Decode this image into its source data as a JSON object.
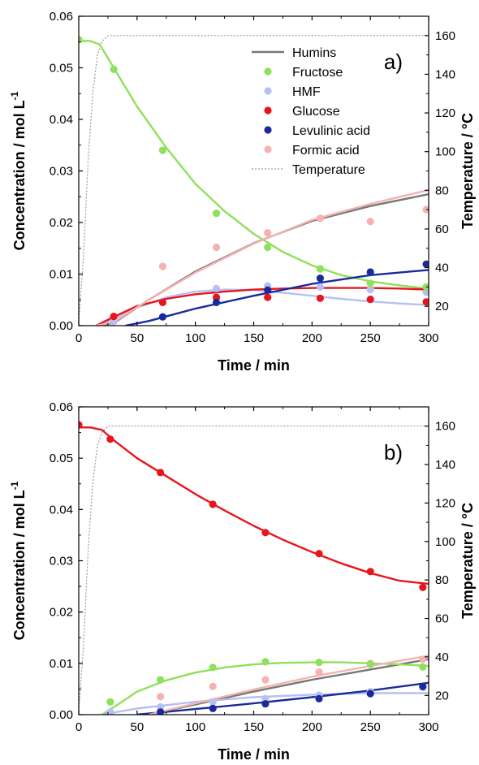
{
  "colors": {
    "humins": "#777777",
    "fructose": "#8fe05a",
    "hmf": "#b6c0f2",
    "glucose": "#e8151d",
    "levulinic": "#1a2a9b",
    "formic": "#f4b3b0",
    "temperature": "#999999"
  },
  "chart_data": [
    {
      "type": "scatter",
      "panel_label": "a)",
      "xlabel": "Time / min",
      "ylabel": "Concentration / mol L",
      "ylabel_sup": "-1",
      "y2label": "Temperature / °C",
      "xlim": [
        0,
        300
      ],
      "ylim": [
        0,
        0.06
      ],
      "y2lim": [
        10,
        170
      ],
      "x_ticks": [
        "0",
        "50",
        "100",
        "150",
        "200",
        "250",
        "300"
      ],
      "y_ticks": [
        "0.00",
        "0.01",
        "0.02",
        "0.03",
        "0.04",
        "0.05",
        "0.06"
      ],
      "y2_ticks": [
        "20",
        "40",
        "60",
        "80",
        "100",
        "120",
        "140",
        "160"
      ],
      "legend_position": "top-right",
      "legend": [
        {
          "key": "humins",
          "label": "Humins",
          "marker": "line"
        },
        {
          "key": "fructose",
          "label": "Fructose",
          "marker": "dot"
        },
        {
          "key": "hmf",
          "label": "HMF",
          "marker": "dot"
        },
        {
          "key": "glucose",
          "label": "Glucose",
          "marker": "dot"
        },
        {
          "key": "levulinic",
          "label": "Levulinic acid",
          "marker": "dot"
        },
        {
          "key": "formic",
          "label": "Formic acid",
          "marker": "dot"
        },
        {
          "key": "temperature",
          "label": "Temperature",
          "marker": "dash"
        }
      ],
      "series": [
        {
          "name": "Humins",
          "key": "humins",
          "fit": [
            [
              15,
              0
            ],
            [
              30,
              0.0005
            ],
            [
              60,
              0.005
            ],
            [
              100,
              0.0105
            ],
            [
              150,
              0.016
            ],
            [
              200,
              0.0203
            ],
            [
              250,
              0.0232
            ],
            [
              300,
              0.0255
            ]
          ]
        },
        {
          "name": "Fructose",
          "key": "fructose",
          "points": [
            [
              0,
              0.0555
            ],
            [
              30,
              0.0497
            ],
            [
              72,
              0.034
            ],
            [
              118,
              0.0218
            ],
            [
              162,
              0.0152
            ],
            [
              207,
              0.011
            ],
            [
              250,
              0.0082
            ],
            [
              298,
              0.0075
            ]
          ],
          "fit": [
            [
              0,
              0.0552
            ],
            [
              10,
              0.0552
            ],
            [
              18,
              0.0545
            ],
            [
              30,
              0.05
            ],
            [
              50,
              0.0425
            ],
            [
              75,
              0.0345
            ],
            [
              100,
              0.0275
            ],
            [
              125,
              0.0222
            ],
            [
              150,
              0.0178
            ],
            [
              175,
              0.0143
            ],
            [
              200,
              0.0117
            ],
            [
              225,
              0.0098
            ],
            [
              250,
              0.0086
            ],
            [
              275,
              0.0078
            ],
            [
              300,
              0.0072
            ]
          ]
        },
        {
          "name": "HMF",
          "key": "hmf",
          "points": [
            [
              30,
              0.0008
            ],
            [
              72,
              0.0045
            ],
            [
              118,
              0.0072
            ],
            [
              162,
              0.0077
            ],
            [
              207,
              0.0075
            ],
            [
              250,
              0.007
            ],
            [
              298,
              0.0065
            ]
          ],
          "fit": [
            [
              15,
              0
            ],
            [
              25,
              0.0008
            ],
            [
              50,
              0.0035
            ],
            [
              75,
              0.0055
            ],
            [
              100,
              0.0066
            ],
            [
              125,
              0.007
            ],
            [
              150,
              0.0069
            ],
            [
              175,
              0.0064
            ],
            [
              200,
              0.0058
            ],
            [
              225,
              0.0052
            ],
            [
              250,
              0.0047
            ],
            [
              275,
              0.0043
            ],
            [
              300,
              0.004
            ]
          ]
        },
        {
          "name": "Glucose",
          "key": "glucose",
          "points": [
            [
              30,
              0.0018
            ],
            [
              72,
              0.0045
            ],
            [
              118,
              0.0055
            ],
            [
              162,
              0.0055
            ],
            [
              207,
              0.0053
            ],
            [
              250,
              0.0051
            ],
            [
              298,
              0.0046
            ]
          ],
          "fit": [
            [
              15,
              0
            ],
            [
              30,
              0.0017
            ],
            [
              50,
              0.0038
            ],
            [
              75,
              0.0052
            ],
            [
              100,
              0.0061
            ],
            [
              125,
              0.0066
            ],
            [
              150,
              0.007
            ],
            [
              175,
              0.0072
            ],
            [
              200,
              0.0073
            ],
            [
              225,
              0.0073
            ],
            [
              250,
              0.0073
            ],
            [
              275,
              0.0072
            ],
            [
              300,
              0.007
            ]
          ]
        },
        {
          "name": "Levulinic acid",
          "key": "levulinic",
          "points": [
            [
              72,
              0.0017
            ],
            [
              118,
              0.0045
            ],
            [
              162,
              0.0069
            ],
            [
              207,
              0.0092
            ],
            [
              250,
              0.0104
            ],
            [
              298,
              0.0119
            ]
          ],
          "fit": [
            [
              40,
              0
            ],
            [
              60,
              0.0009
            ],
            [
              100,
              0.0033
            ],
            [
              150,
              0.0058
            ],
            [
              200,
              0.0081
            ],
            [
              250,
              0.0098
            ],
            [
              300,
              0.0108
            ]
          ]
        },
        {
          "name": "Formic acid",
          "key": "formic",
          "points": [
            [
              72,
              0.0115
            ],
            [
              118,
              0.0152
            ],
            [
              162,
              0.018
            ],
            [
              207,
              0.0208
            ],
            [
              250,
              0.0202
            ],
            [
              298,
              0.0225
            ]
          ],
          "fit": [
            [
              15,
              0
            ],
            [
              30,
              0.0007
            ],
            [
              60,
              0.005
            ],
            [
              100,
              0.0103
            ],
            [
              150,
              0.0159
            ],
            [
              200,
              0.0205
            ],
            [
              250,
              0.0236
            ],
            [
              300,
              0.0263
            ]
          ]
        },
        {
          "name": "Temperature",
          "key": "temperature",
          "axis": "y2",
          "fit": [
            [
              0,
              12
            ],
            [
              4,
              45
            ],
            [
              8,
              95
            ],
            [
              12,
              130
            ],
            [
              16,
              150
            ],
            [
              20,
              157
            ],
            [
              25,
              160
            ],
            [
              300,
              160
            ]
          ]
        }
      ]
    },
    {
      "type": "scatter",
      "panel_label": "b)",
      "xlabel": "Time / min",
      "ylabel": "Concentration / mol L",
      "ylabel_sup": "-1",
      "y2label": "Temperature / °C",
      "xlim": [
        0,
        300
      ],
      "ylim": [
        0,
        0.06
      ],
      "y2lim": [
        10,
        170
      ],
      "x_ticks": [
        "0",
        "50",
        "100",
        "150",
        "200",
        "250",
        "300"
      ],
      "y_ticks": [
        "0.00",
        "0.01",
        "0.02",
        "0.03",
        "0.04",
        "0.05",
        "0.06"
      ],
      "y2_ticks": [
        "20",
        "40",
        "60",
        "80",
        "100",
        "120",
        "140",
        "160"
      ],
      "series": [
        {
          "name": "Humins",
          "key": "humins",
          "fit": [
            [
              60,
              0
            ],
            [
              100,
              0.002
            ],
            [
              150,
              0.0045
            ],
            [
              200,
              0.0068
            ],
            [
              250,
              0.0088
            ],
            [
              300,
              0.0108
            ]
          ]
        },
        {
          "name": "Fructose",
          "key": "fructose",
          "points": [
            [
              27,
              0.0025
            ],
            [
              70,
              0.0068
            ],
            [
              115,
              0.0092
            ],
            [
              160,
              0.0103
            ],
            [
              206,
              0.0102
            ],
            [
              250,
              0.0098
            ],
            [
              295,
              0.0093
            ]
          ],
          "fit": [
            [
              20,
              0
            ],
            [
              35,
              0.0022
            ],
            [
              50,
              0.0045
            ],
            [
              75,
              0.0067
            ],
            [
              100,
              0.0082
            ],
            [
              125,
              0.0092
            ],
            [
              150,
              0.0098
            ],
            [
              175,
              0.0101
            ],
            [
              200,
              0.0102
            ],
            [
              225,
              0.0102
            ],
            [
              250,
              0.01
            ],
            [
              275,
              0.0098
            ],
            [
              300,
              0.0095
            ]
          ]
        },
        {
          "name": "HMF",
          "key": "hmf",
          "points": [
            [
              27,
              0.0005
            ],
            [
              70,
              0.0015
            ],
            [
              115,
              0.0025
            ],
            [
              160,
              0.0031
            ],
            [
              206,
              0.0038
            ],
            [
              250,
              0.0045
            ],
            [
              295,
              0.0053
            ]
          ],
          "fit": [
            [
              20,
              0
            ],
            [
              50,
              0.0012
            ],
            [
              100,
              0.0025
            ],
            [
              150,
              0.0034
            ],
            [
              200,
              0.0039
            ],
            [
              250,
              0.0042
            ],
            [
              300,
              0.0042
            ]
          ]
        },
        {
          "name": "Glucose",
          "key": "glucose",
          "points": [
            [
              0,
              0.0565
            ],
            [
              27,
              0.0537
            ],
            [
              70,
              0.0472
            ],
            [
              115,
              0.041
            ],
            [
              160,
              0.0355
            ],
            [
              206,
              0.0314
            ],
            [
              250,
              0.0279
            ],
            [
              295,
              0.0248
            ]
          ],
          "fit": [
            [
              0,
              0.056
            ],
            [
              10,
              0.056
            ],
            [
              20,
              0.0555
            ],
            [
              30,
              0.0535
            ],
            [
              50,
              0.05
            ],
            [
              75,
              0.0465
            ],
            [
              100,
              0.043
            ],
            [
              125,
              0.0398
            ],
            [
              150,
              0.0368
            ],
            [
              175,
              0.0341
            ],
            [
              200,
              0.0317
            ],
            [
              225,
              0.0295
            ],
            [
              250,
              0.0276
            ],
            [
              275,
              0.0261
            ],
            [
              300,
              0.0255
            ]
          ]
        },
        {
          "name": "Levulinic acid",
          "key": "levulinic",
          "points": [
            [
              70,
              0.0005
            ],
            [
              115,
              0.0012
            ],
            [
              160,
              0.0021
            ],
            [
              206,
              0.0031
            ],
            [
              250,
              0.0041
            ],
            [
              295,
              0.0055
            ]
          ],
          "fit": [
            [
              50,
              0
            ],
            [
              100,
              0.0011
            ],
            [
              150,
              0.0022
            ],
            [
              200,
              0.0034
            ],
            [
              250,
              0.0047
            ],
            [
              300,
              0.0062
            ]
          ]
        },
        {
          "name": "Formic acid",
          "key": "formic",
          "points": [
            [
              70,
              0.0035
            ],
            [
              115,
              0.0055
            ],
            [
              160,
              0.0068
            ],
            [
              206,
              0.0083
            ],
            [
              250,
              0.01
            ],
            [
              295,
              0.0108
            ]
          ],
          "fit": [
            [
              60,
              0
            ],
            [
              100,
              0.0022
            ],
            [
              150,
              0.0049
            ],
            [
              200,
              0.0074
            ],
            [
              250,
              0.0095
            ],
            [
              300,
              0.0115
            ]
          ]
        },
        {
          "name": "Temperature",
          "key": "temperature",
          "axis": "y2",
          "fit": [
            [
              0,
              12
            ],
            [
              4,
              45
            ],
            [
              8,
              95
            ],
            [
              12,
              130
            ],
            [
              16,
              150
            ],
            [
              20,
              157
            ],
            [
              25,
              160
            ],
            [
              300,
              160
            ]
          ]
        }
      ]
    }
  ]
}
